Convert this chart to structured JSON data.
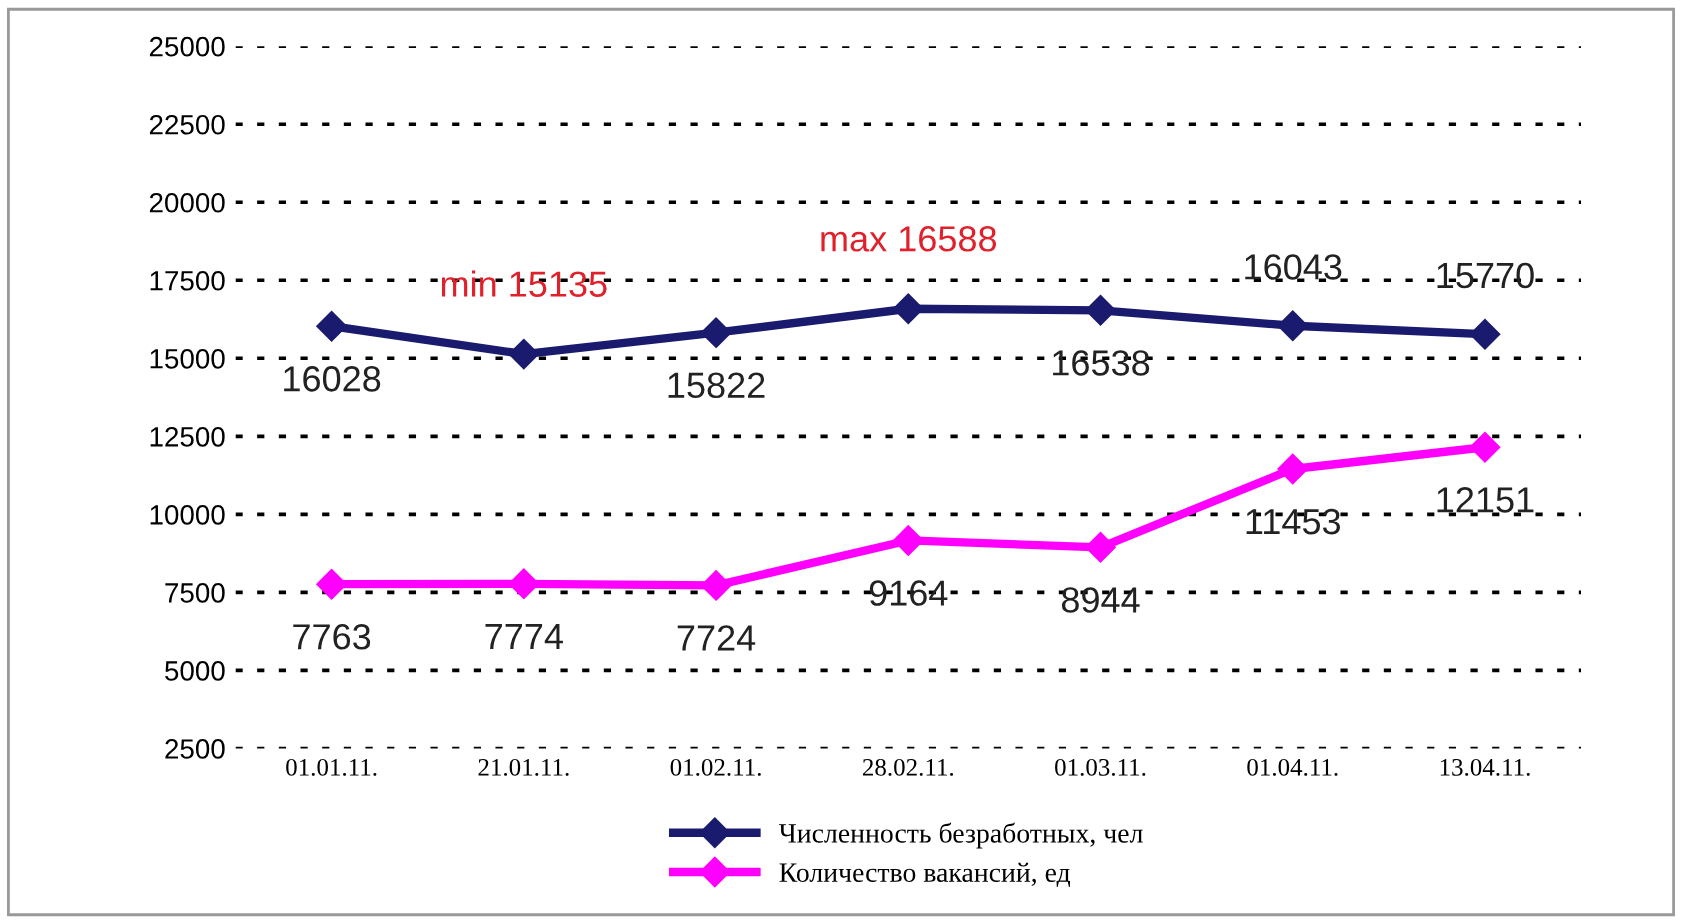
{
  "chart_data": {
    "type": "line",
    "categories": [
      "01.01.11.",
      "21.01.11.",
      "01.02.11.",
      "28.02.11.",
      "01.03.11.",
      "01.04.11.",
      "13.04.11."
    ],
    "series": [
      {
        "name": "Численность безработных, чел",
        "color": "#1a1a6e",
        "values": [
          16028,
          15135,
          15822,
          16588,
          16538,
          16043,
          15770
        ],
        "value_labels": [
          "16028",
          null,
          "15822",
          null,
          "16538",
          "16043",
          "15770"
        ]
      },
      {
        "name": "Количество вакансий, ед",
        "color": "#ff00ff",
        "values": [
          7763,
          7774,
          7724,
          9164,
          8944,
          11453,
          12151
        ],
        "value_labels": [
          "7763",
          "7774",
          "7724",
          "9164",
          "8944",
          "11453",
          "12151"
        ]
      }
    ],
    "annotations": [
      {
        "text": "min 15135",
        "x": "21.01.11.",
        "y": 15135
      },
      {
        "text": "max 16588",
        "x": "28.02.11.",
        "y": 16588
      }
    ],
    "ylim": [
      2500,
      25000
    ],
    "yticks": [
      2500,
      5000,
      7500,
      10000,
      12500,
      15000,
      17500,
      20000,
      22500,
      25000
    ],
    "grid": "y",
    "legend": "bottom",
    "marker": "diamond",
    "line_style": "solid"
  }
}
